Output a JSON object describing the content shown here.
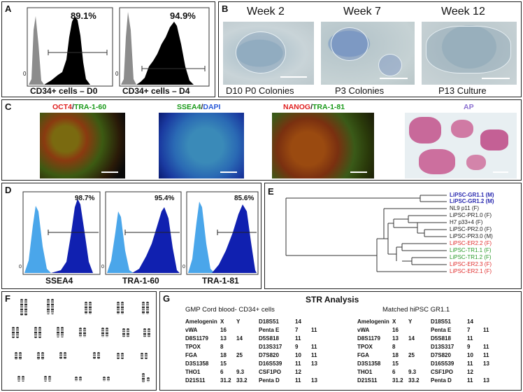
{
  "panels": {
    "A": {
      "label": "A",
      "plots": [
        {
          "percent": "89.1%",
          "caption": "CD34+ cells – D0",
          "zero": "0"
        },
        {
          "percent": "94.9%",
          "caption": "CD34+ cells – D4",
          "zero": "0"
        }
      ]
    },
    "B": {
      "label": "B",
      "weeks": [
        "Week 2",
        "Week 7",
        "Week 12"
      ],
      "captions": [
        "D10 P0 Colonies",
        "P3 Colonies",
        "P13 Culture"
      ]
    },
    "C": {
      "label": "C",
      "stains": [
        {
          "parts": [
            {
              "text": "OCT4",
              "color": "#e02020"
            },
            {
              "text": "/",
              "color": "#222222"
            },
            {
              "text": "TRA-1-60",
              "color": "#1a9a1a"
            }
          ]
        },
        {
          "parts": [
            {
              "text": "SSEA4",
              "color": "#1a9a1a"
            },
            {
              "text": "/",
              "color": "#222222"
            },
            {
              "text": "DAPI",
              "color": "#2a5ad8"
            }
          ]
        },
        {
          "parts": [
            {
              "text": "NANOG",
              "color": "#e02020"
            },
            {
              "text": "/",
              "color": "#222222"
            },
            {
              "text": "TRA-1-81",
              "color": "#1a9a1a"
            }
          ]
        },
        {
          "parts": [
            {
              "text": "AP",
              "color": "#8a6fd0"
            }
          ]
        }
      ]
    },
    "D": {
      "label": "D",
      "plots": [
        {
          "percent": "98.7%",
          "caption": "SSEA4",
          "zero": "0"
        },
        {
          "percent": "95.4%",
          "caption": "TRA-1-60",
          "zero": "0"
        },
        {
          "percent": "85.6%",
          "caption": "TRA-1-81",
          "zero": "0"
        }
      ]
    },
    "E": {
      "label": "E",
      "leaves": [
        {
          "text": "LiPSC-GR1.1 (M)",
          "color": "#2a2ab0",
          "bold": true
        },
        {
          "text": "LiPSC-GR1.2 (M)",
          "color": "#2a2ab0",
          "bold": true
        },
        {
          "text": "NL9 p11 (F)",
          "color": "#222222",
          "bold": false
        },
        {
          "text": "LiPSC-PR1.0 (F)",
          "color": "#222222",
          "bold": false
        },
        {
          "text": "H7 p33+4 (F)",
          "color": "#222222",
          "bold": false
        },
        {
          "text": "LiPSC-PR2.0 (F)",
          "color": "#222222",
          "bold": false
        },
        {
          "text": "LiPSC-PR3.0 (M)",
          "color": "#222222",
          "bold": false
        },
        {
          "text": "LiPSC-ER2.2 (F)",
          "color": "#e03030",
          "bold": false
        },
        {
          "text": "LiPSC-TR1.1 (F)",
          "color": "#2a9a2a",
          "bold": false
        },
        {
          "text": "LiPSC-TR1.2 (F)",
          "color": "#2a9a2a",
          "bold": false
        },
        {
          "text": "LiPSC-ER2.3 (F)",
          "color": "#e03030",
          "bold": false
        },
        {
          "text": "LiPSC-ER2.1 (F)",
          "color": "#e03030",
          "bold": false
        }
      ]
    },
    "F": {
      "label": "F"
    },
    "G": {
      "label": "G",
      "title": "STR Analysis",
      "left_title": "GMP Cord blood-  CD34+ cells",
      "right_title": "Matched hiPSC GR1.1",
      "rows": [
        [
          "Amelogenin",
          "X",
          "Y",
          "D18S51",
          "14",
          ""
        ],
        [
          "vWA",
          "16",
          "",
          "Penta E",
          "7",
          "11"
        ],
        [
          "D8S1179",
          "13",
          "14",
          "D5S818",
          "11",
          ""
        ],
        [
          "TPOX",
          "8",
          "",
          "D13S317",
          "9",
          "11"
        ],
        [
          "FGA",
          "18",
          "25",
          "D7S820",
          "10",
          "11"
        ],
        [
          "D3S1358",
          "15",
          "",
          "D16S539",
          "11",
          "13"
        ],
        [
          "THO1",
          "6",
          "9.3",
          "CSF1PO",
          "12",
          ""
        ],
        [
          "D21S11",
          "31.2",
          "33.2",
          "Penta D",
          "11",
          "13"
        ]
      ]
    }
  }
}
